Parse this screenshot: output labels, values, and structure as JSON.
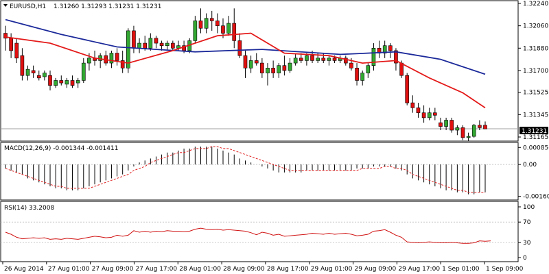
{
  "chart_data": {
    "type": "candlestick",
    "symbol": "EURUSD,H1",
    "ohlc_header": "1.31260 1.31293 1.31231 1.31231",
    "price_axis": {
      "ylim": [
        1.31165,
        1.3224
      ],
      "ticks": [
        "1.32240",
        "1.32060",
        "1.31880",
        "1.31700",
        "1.31525",
        "1.31345",
        "1.31165"
      ]
    },
    "current_price": "1.31231",
    "time_axis": {
      "ticks": [
        "26 Aug 2014",
        "27 Aug 01:00",
        "27 Aug 09:00",
        "27 Aug 17:00",
        "28 Aug 01:00",
        "28 Aug 09:00",
        "28 Aug 17:00",
        "29 Aug 01:00",
        "29 Aug 09:00",
        "29 Aug 17:00",
        "1 Sep 01:00",
        "1 Sep 09:00"
      ]
    },
    "candles": [
      {
        "o": 1.32,
        "h": 1.3206,
        "l": 1.3186,
        "c": 1.3196
      },
      {
        "o": 1.3196,
        "h": 1.32,
        "l": 1.318,
        "c": 1.3186
      },
      {
        "o": 1.3192,
        "h": 1.3196,
        "l": 1.3176,
        "c": 1.318
      },
      {
        "o": 1.3182,
        "h": 1.3188,
        "l": 1.3162,
        "c": 1.3166
      },
      {
        "o": 1.3166,
        "h": 1.3174,
        "l": 1.3162,
        "c": 1.3171
      },
      {
        "o": 1.317,
        "h": 1.3174,
        "l": 1.3164,
        "c": 1.3168
      },
      {
        "o": 1.3166,
        "h": 1.317,
        "l": 1.3162,
        "c": 1.3164
      },
      {
        "o": 1.3165,
        "h": 1.317,
        "l": 1.3162,
        "c": 1.3168
      },
      {
        "o": 1.3166,
        "h": 1.317,
        "l": 1.3154,
        "c": 1.3158
      },
      {
        "o": 1.3158,
        "h": 1.3164,
        "l": 1.3156,
        "c": 1.3162
      },
      {
        "o": 1.3162,
        "h": 1.3166,
        "l": 1.3158,
        "c": 1.316
      },
      {
        "o": 1.3159,
        "h": 1.3164,
        "l": 1.3156,
        "c": 1.3162
      },
      {
        "o": 1.3162,
        "h": 1.3166,
        "l": 1.3156,
        "c": 1.3158
      },
      {
        "o": 1.316,
        "h": 1.3164,
        "l": 1.3156,
        "c": 1.3162
      },
      {
        "o": 1.3162,
        "h": 1.318,
        "l": 1.316,
        "c": 1.3176
      },
      {
        "o": 1.3176,
        "h": 1.3184,
        "l": 1.317,
        "c": 1.318
      },
      {
        "o": 1.318,
        "h": 1.3186,
        "l": 1.3174,
        "c": 1.3178
      },
      {
        "o": 1.3178,
        "h": 1.3184,
        "l": 1.3172,
        "c": 1.3182
      },
      {
        "o": 1.3182,
        "h": 1.3186,
        "l": 1.3174,
        "c": 1.3176
      },
      {
        "o": 1.3176,
        "h": 1.3186,
        "l": 1.3172,
        "c": 1.3184
      },
      {
        "o": 1.3184,
        "h": 1.3188,
        "l": 1.3174,
        "c": 1.3178
      },
      {
        "o": 1.3178,
        "h": 1.3186,
        "l": 1.3168,
        "c": 1.3172
      },
      {
        "o": 1.3172,
        "h": 1.3204,
        "l": 1.3168,
        "c": 1.3202
      },
      {
        "o": 1.3202,
        "h": 1.3206,
        "l": 1.3184,
        "c": 1.3188
      },
      {
        "o": 1.3188,
        "h": 1.3196,
        "l": 1.3184,
        "c": 1.3192
      },
      {
        "o": 1.3192,
        "h": 1.3198,
        "l": 1.3186,
        "c": 1.3188
      },
      {
        "o": 1.3188,
        "h": 1.32,
        "l": 1.3186,
        "c": 1.3196
      },
      {
        "o": 1.3196,
        "h": 1.3198,
        "l": 1.3188,
        "c": 1.3192
      },
      {
        "o": 1.3192,
        "h": 1.3194,
        "l": 1.3186,
        "c": 1.319
      },
      {
        "o": 1.319,
        "h": 1.3194,
        "l": 1.3186,
        "c": 1.3192
      },
      {
        "o": 1.3192,
        "h": 1.3194,
        "l": 1.3186,
        "c": 1.3188
      },
      {
        "o": 1.3188,
        "h": 1.3194,
        "l": 1.3186,
        "c": 1.319
      },
      {
        "o": 1.319,
        "h": 1.3194,
        "l": 1.3184,
        "c": 1.3186
      },
      {
        "o": 1.3186,
        "h": 1.3196,
        "l": 1.3184,
        "c": 1.3194
      },
      {
        "o": 1.3194,
        "h": 1.3214,
        "l": 1.3192,
        "c": 1.321
      },
      {
        "o": 1.321,
        "h": 1.322,
        "l": 1.32,
        "c": 1.3204
      },
      {
        "o": 1.3204,
        "h": 1.3216,
        "l": 1.32,
        "c": 1.3212
      },
      {
        "o": 1.3212,
        "h": 1.3218,
        "l": 1.3202,
        "c": 1.321
      },
      {
        "o": 1.321,
        "h": 1.3216,
        "l": 1.32,
        "c": 1.3206
      },
      {
        "o": 1.3206,
        "h": 1.3212,
        "l": 1.3196,
        "c": 1.32
      },
      {
        "o": 1.32,
        "h": 1.3214,
        "l": 1.3198,
        "c": 1.3208
      },
      {
        "o": 1.3208,
        "h": 1.322,
        "l": 1.3188,
        "c": 1.3194
      },
      {
        "o": 1.3194,
        "h": 1.32,
        "l": 1.318,
        "c": 1.3182
      },
      {
        "o": 1.3182,
        "h": 1.3186,
        "l": 1.3164,
        "c": 1.3172
      },
      {
        "o": 1.3172,
        "h": 1.3182,
        "l": 1.3168,
        "c": 1.3178
      },
      {
        "o": 1.3178,
        "h": 1.3184,
        "l": 1.3174,
        "c": 1.3176
      },
      {
        "o": 1.3176,
        "h": 1.318,
        "l": 1.3164,
        "c": 1.3168
      },
      {
        "o": 1.3168,
        "h": 1.3176,
        "l": 1.3158,
        "c": 1.3172
      },
      {
        "o": 1.3172,
        "h": 1.3178,
        "l": 1.3164,
        "c": 1.3168
      },
      {
        "o": 1.3168,
        "h": 1.3176,
        "l": 1.3164,
        "c": 1.3174
      },
      {
        "o": 1.3174,
        "h": 1.3182,
        "l": 1.3166,
        "c": 1.317
      },
      {
        "o": 1.317,
        "h": 1.318,
        "l": 1.3168,
        "c": 1.3176
      },
      {
        "o": 1.3176,
        "h": 1.3184,
        "l": 1.3174,
        "c": 1.318
      },
      {
        "o": 1.318,
        "h": 1.3184,
        "l": 1.3176,
        "c": 1.3178
      },
      {
        "o": 1.3178,
        "h": 1.3184,
        "l": 1.3174,
        "c": 1.3182
      },
      {
        "o": 1.3182,
        "h": 1.3186,
        "l": 1.3176,
        "c": 1.3178
      },
      {
        "o": 1.3178,
        "h": 1.3184,
        "l": 1.3176,
        "c": 1.318
      },
      {
        "o": 1.318,
        "h": 1.3184,
        "l": 1.3176,
        "c": 1.3178
      },
      {
        "o": 1.3178,
        "h": 1.3182,
        "l": 1.3174,
        "c": 1.318
      },
      {
        "o": 1.318,
        "h": 1.3182,
        "l": 1.3176,
        "c": 1.3178
      },
      {
        "o": 1.3178,
        "h": 1.3182,
        "l": 1.3176,
        "c": 1.318
      },
      {
        "o": 1.318,
        "h": 1.3182,
        "l": 1.3174,
        "c": 1.3176
      },
      {
        "o": 1.3176,
        "h": 1.318,
        "l": 1.317,
        "c": 1.3172
      },
      {
        "o": 1.3172,
        "h": 1.3176,
        "l": 1.3158,
        "c": 1.3162
      },
      {
        "o": 1.3162,
        "h": 1.317,
        "l": 1.3158,
        "c": 1.3168
      },
      {
        "o": 1.3168,
        "h": 1.3176,
        "l": 1.3164,
        "c": 1.3174
      },
      {
        "o": 1.3174,
        "h": 1.3192,
        "l": 1.317,
        "c": 1.3188
      },
      {
        "o": 1.3188,
        "h": 1.3194,
        "l": 1.318,
        "c": 1.3184
      },
      {
        "o": 1.3184,
        "h": 1.3194,
        "l": 1.318,
        "c": 1.319
      },
      {
        "o": 1.319,
        "h": 1.3192,
        "l": 1.318,
        "c": 1.3186
      },
      {
        "o": 1.3186,
        "h": 1.3188,
        "l": 1.317,
        "c": 1.3176
      },
      {
        "o": 1.3176,
        "h": 1.3178,
        "l": 1.3164,
        "c": 1.3166
      },
      {
        "o": 1.3166,
        "h": 1.3168,
        "l": 1.3142,
        "c": 1.3144
      },
      {
        "o": 1.3144,
        "h": 1.315,
        "l": 1.3136,
        "c": 1.314
      },
      {
        "o": 1.314,
        "h": 1.3144,
        "l": 1.3132,
        "c": 1.3136
      },
      {
        "o": 1.3136,
        "h": 1.3142,
        "l": 1.3128,
        "c": 1.3132
      },
      {
        "o": 1.3132,
        "h": 1.314,
        "l": 1.313,
        "c": 1.3136
      },
      {
        "o": 1.3136,
        "h": 1.314,
        "l": 1.313,
        "c": 1.3134
      },
      {
        "o": 1.3128,
        "h": 1.3132,
        "l": 1.3122,
        "c": 1.3125
      },
      {
        "o": 1.3125,
        "h": 1.3132,
        "l": 1.3122,
        "c": 1.313
      },
      {
        "o": 1.313,
        "h": 1.3132,
        "l": 1.312,
        "c": 1.3122
      },
      {
        "o": 1.3122,
        "h": 1.3126,
        "l": 1.3118,
        "c": 1.3124
      },
      {
        "o": 1.3124,
        "h": 1.3126,
        "l": 1.3114,
        "c": 1.3116
      },
      {
        "o": 1.3116,
        "h": 1.312,
        "l": 1.3113,
        "c": 1.3117
      },
      {
        "o": 1.3117,
        "h": 1.3127,
        "l": 1.3116,
        "c": 1.3126
      },
      {
        "o": 1.3126,
        "h": 1.313,
        "l": 1.3122,
        "c": 1.3124
      },
      {
        "o": 1.3126,
        "h": 1.3129,
        "l": 1.3123,
        "c": 1.3123
      }
    ],
    "ma_slow_blue": [
      [
        0,
        1.3211
      ],
      [
        10,
        1.3199
      ],
      [
        20,
        1.3189
      ],
      [
        34,
        1.3185
      ],
      [
        46,
        1.3187
      ],
      [
        60,
        1.3183
      ],
      [
        70,
        1.3185
      ],
      [
        78,
        1.3179
      ],
      [
        86,
        1.3167
      ]
    ],
    "ma_fast_red": [
      [
        0,
        1.3197
      ],
      [
        8,
        1.3192
      ],
      [
        16,
        1.318
      ],
      [
        22,
        1.3176
      ],
      [
        30,
        1.3186
      ],
      [
        38,
        1.3198
      ],
      [
        44,
        1.32
      ],
      [
        50,
        1.3184
      ],
      [
        58,
        1.3182
      ],
      [
        64,
        1.3176
      ],
      [
        70,
        1.3178
      ],
      [
        76,
        1.3164
      ],
      [
        82,
        1.3152
      ],
      [
        86,
        1.314
      ]
    ],
    "macd": {
      "label": "MACD(12,26,9) -0.001344 -0.001411",
      "ylim": [
        -0.00165,
        0.0009
      ],
      "ticks": [
        "0.000856",
        "0.00",
        "-0.001605"
      ],
      "histogram": [
        -0.0002,
        -0.0003,
        -0.0004,
        -0.0005,
        -0.0007,
        -0.0008,
        -0.0009,
        -0.001,
        -0.0011,
        -0.0012,
        -0.0012,
        -0.0013,
        -0.0013,
        -0.0013,
        -0.0012,
        -0.0011,
        -0.001,
        -0.0009,
        -0.0008,
        -0.0007,
        -0.0006,
        -0.0005,
        -0.0003,
        -0.0001,
        0.0001,
        0.0002,
        0.0003,
        0.0004,
        0.0005,
        0.0006,
        0.0006,
        0.0007,
        0.0008,
        0.0008,
        0.0009,
        0.0009,
        0.0009,
        0.0009,
        0.0008,
        0.0007,
        0.0006,
        0.0005,
        0.0003,
        0.0002,
        0.0001,
        0.0,
        -0.0001,
        -0.0002,
        -0.0003,
        -0.0004,
        -0.0004,
        -0.0004,
        -0.0004,
        -0.0004,
        -0.0003,
        -0.0003,
        -0.0003,
        -0.0003,
        -0.0003,
        -0.0003,
        -0.0003,
        -0.0003,
        -0.0003,
        -0.0002,
        -0.0002,
        -0.0002,
        -0.0001,
        -0.0001,
        -0.0001,
        -0.0001,
        -0.0002,
        -0.0003,
        -0.0005,
        -0.0007,
        -0.0008,
        -0.0009,
        -0.001,
        -0.0011,
        -0.0012,
        -0.0013,
        -0.0013,
        -0.0014,
        -0.0014,
        -0.0015,
        -0.0015,
        -0.0014,
        -0.0014
      ],
      "signal": [
        -0.0002,
        -0.0003,
        -0.0004,
        -0.0005,
        -0.0006,
        -0.0007,
        -0.0008,
        -0.0009,
        -0.001,
        -0.0011,
        -0.0011,
        -0.0012,
        -0.0012,
        -0.0012,
        -0.0012,
        -0.0012,
        -0.0011,
        -0.001,
        -0.0009,
        -0.0008,
        -0.0007,
        -0.0006,
        -0.0005,
        -0.0003,
        -0.0002,
        -0.0001,
        0.0001,
        0.0002,
        0.0003,
        0.0004,
        0.0005,
        0.0006,
        0.0006,
        0.0007,
        0.0008,
        0.0008,
        0.0008,
        0.0009,
        0.0009,
        0.0008,
        0.0008,
        0.0007,
        0.0006,
        0.0005,
        0.0004,
        0.0003,
        0.0002,
        0.0001,
        0.0,
        -0.0001,
        -0.0002,
        -0.0003,
        -0.0003,
        -0.0003,
        -0.0003,
        -0.0003,
        -0.0003,
        -0.0003,
        -0.0003,
        -0.0003,
        -0.0003,
        -0.0003,
        -0.0003,
        -0.0003,
        -0.0002,
        -0.0002,
        -0.0002,
        -0.0002,
        -0.0001,
        -0.0001,
        -0.0002,
        -0.0002,
        -0.0003,
        -0.0005,
        -0.0006,
        -0.0007,
        -0.0008,
        -0.0009,
        -0.001,
        -0.0011,
        -0.0012,
        -0.0013,
        -0.0013,
        -0.0014,
        -0.0014,
        -0.0014,
        -0.0014
      ]
    },
    "rsi": {
      "label": "RSI(14) 33.2008",
      "ylim": [
        0,
        100
      ],
      "ticks": [
        "100",
        "70",
        "30",
        "0"
      ],
      "levels": [
        70,
        30
      ],
      "values": [
        50,
        46,
        40,
        37,
        38,
        39,
        38,
        39,
        36,
        37,
        36,
        38,
        37,
        36,
        38,
        40,
        42,
        41,
        39,
        40,
        44,
        42,
        44,
        53,
        50,
        52,
        50,
        52,
        51,
        53,
        52,
        52,
        51,
        52,
        56,
        58,
        56,
        55,
        56,
        54,
        55,
        54,
        53,
        52,
        49,
        45,
        50,
        48,
        44,
        46,
        42,
        43,
        44,
        45,
        46,
        48,
        47,
        46,
        48,
        46,
        47,
        48,
        46,
        43,
        44,
        46,
        52,
        53,
        55,
        50,
        44,
        40,
        31,
        30,
        29,
        30,
        31,
        30,
        29,
        29,
        30,
        29,
        28,
        28,
        29,
        33,
        32,
        33
      ]
    }
  },
  "colors": {
    "bull": "#32a832",
    "bear": "#e01010",
    "ma_slow": "#1c2a9a",
    "ma_fast": "#e41a1a",
    "macd_hist": "#000000",
    "signal": "#e02020",
    "rsi_line": "#d01010",
    "grid": "#c8c8c8",
    "price_line": "#a0a0a0"
  }
}
